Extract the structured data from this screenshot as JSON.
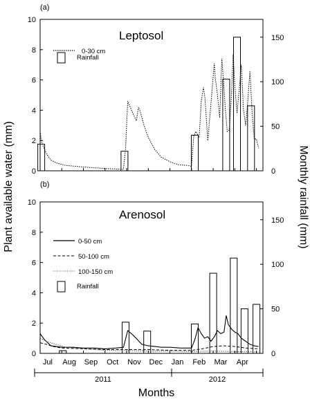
{
  "chart_data": [
    {
      "panel": "(a)",
      "type": "line",
      "title": "Leptosol",
      "ylabel": "Plant available water (mm)",
      "y2label": "Monthly rainfall (mm)",
      "ylim": [
        0,
        10
      ],
      "y2lim": [
        0,
        170
      ],
      "xlim": [
        0,
        10.3
      ],
      "yticks": [
        0,
        2,
        4,
        6,
        8,
        10
      ],
      "y2ticks": [
        0,
        50,
        100,
        150
      ],
      "series": [
        {
          "name": "0-30 cm",
          "style": "dotted",
          "x": [
            0.0,
            0.05,
            0.15,
            0.3,
            0.5,
            0.8,
            1.2,
            1.6,
            2.0,
            2.5,
            3.0,
            3.5,
            3.85,
            3.95,
            4.05,
            4.2,
            4.35,
            4.45,
            4.55,
            4.65,
            4.8,
            5.0,
            5.3,
            5.6,
            6.0,
            6.4,
            6.8,
            7.0,
            7.1,
            7.2,
            7.35,
            7.45,
            7.55,
            7.62,
            7.75,
            7.9,
            8.05,
            8.1,
            8.2,
            8.3,
            8.4,
            8.5,
            8.55,
            8.65,
            8.75,
            8.85,
            8.92,
            9.0,
            9.1,
            9.2,
            9.3,
            9.4,
            9.5,
            9.6,
            9.7,
            9.8,
            9.9,
            10.0,
            10.1
          ],
          "values": [
            2.6,
            2.0,
            1.6,
            1.1,
            0.7,
            0.5,
            0.35,
            0.3,
            0.25,
            0.2,
            0.15,
            0.12,
            0.1,
            1.5,
            4.6,
            4.1,
            3.6,
            3.3,
            4.2,
            3.8,
            3.0,
            2.2,
            1.4,
            0.9,
            0.6,
            0.4,
            0.35,
            0.3,
            2.3,
            2.6,
            2.2,
            4.6,
            5.5,
            4.8,
            2.0,
            4.5,
            7.1,
            6.1,
            5.0,
            3.5,
            7.4,
            5.5,
            4.3,
            2.6,
            2.7,
            5.2,
            7.7,
            5.6,
            3.8,
            5.3,
            7.0,
            4.0,
            3.0,
            4.6,
            6.6,
            3.8,
            2.1,
            2.1,
            1.5
          ]
        }
      ],
      "bars": {
        "name": "Rainfall",
        "x": [
          0.05,
          3.9,
          7.15,
          8.6,
          9.1,
          9.75
        ],
        "values": [
          30,
          22,
          40,
          103,
          150,
          73
        ]
      }
    },
    {
      "panel": "(b)",
      "type": "line",
      "title": "Arenosol",
      "ylim": [
        0,
        10
      ],
      "y2lim": [
        0,
        170
      ],
      "xlim": [
        0,
        10.3
      ],
      "yticks": [
        0,
        2,
        4,
        6,
        8,
        10
      ],
      "y2ticks": [
        0,
        50,
        100,
        150
      ],
      "xlabel": "Months",
      "months": [
        "Jul",
        "Aug",
        "Sep",
        "Oct",
        "Nov",
        "Dec",
        "Jan",
        "Feb",
        "Mar",
        "Apr"
      ],
      "years": [
        "2011",
        "2012"
      ],
      "series": [
        {
          "name": "0-50 cm",
          "style": "solid",
          "x": [
            0.0,
            0.2,
            0.5,
            1.0,
            1.5,
            2.0,
            2.5,
            3.0,
            3.5,
            3.85,
            4.05,
            4.3,
            4.5,
            4.7,
            5.0,
            5.3,
            5.6,
            6.0,
            6.5,
            7.0,
            7.15,
            7.3,
            7.45,
            7.6,
            7.75,
            7.9,
            8.05,
            8.2,
            8.35,
            8.5,
            8.6,
            8.7,
            8.85,
            9.0,
            9.15,
            9.3,
            9.5,
            9.7,
            9.9,
            10.1
          ],
          "values": [
            1.3,
            0.9,
            0.5,
            0.4,
            0.4,
            0.35,
            0.35,
            0.3,
            0.35,
            0.4,
            1.5,
            1.2,
            0.9,
            0.6,
            0.5,
            0.45,
            0.4,
            0.4,
            0.35,
            0.35,
            0.9,
            1.7,
            1.3,
            1.0,
            1.1,
            0.8,
            1.1,
            1.5,
            1.3,
            1.4,
            2.5,
            1.9,
            1.6,
            1.4,
            1.3,
            1.0,
            0.8,
            0.6,
            0.5,
            0.45
          ]
        },
        {
          "name": "50-100 cm",
          "style": "dashed",
          "x": [
            0.0,
            0.3,
            0.6,
            1.0,
            2.0,
            3.0,
            4.0,
            5.0,
            6.0,
            7.0,
            7.5,
            8.0,
            8.5,
            9.0,
            9.5,
            10.1
          ],
          "values": [
            0.7,
            0.6,
            0.45,
            0.35,
            0.3,
            0.25,
            0.25,
            0.25,
            0.2,
            0.2,
            0.3,
            0.45,
            0.5,
            0.45,
            0.35,
            0.3
          ]
        },
        {
          "name": "100-150 cm",
          "style": "dotted",
          "x": [
            0.0,
            0.3,
            0.7,
            1.2,
            2.0,
            3.0,
            4.0,
            5.0,
            6.0,
            7.0,
            8.0,
            9.0,
            10.1
          ],
          "values": [
            1.0,
            0.8,
            0.6,
            0.4,
            0.3,
            0.2,
            0.18,
            0.15,
            0.15,
            0.12,
            0.15,
            0.12,
            0.1
          ]
        }
      ],
      "bars": {
        "name": "Rainfall",
        "x": [
          3.95,
          7.15,
          8.0,
          8.95,
          9.45,
          10.0,
          1.05,
          4.95
        ],
        "values": [
          35,
          33,
          90,
          107,
          50,
          55,
          3,
          25
        ]
      }
    }
  ]
}
